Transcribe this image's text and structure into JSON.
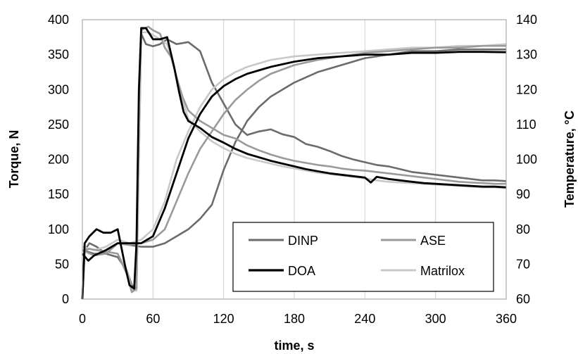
{
  "chart_data": {
    "type": "line",
    "xlabel": "time, s",
    "ylabel_left": "Torque, N",
    "ylabel_right": "Temperature, °C",
    "xlim": [
      0,
      360
    ],
    "ylim_left": [
      0,
      400
    ],
    "ylim_right": [
      60,
      140
    ],
    "x_ticks": [
      "0",
      "60",
      "120",
      "180",
      "240",
      "300",
      "360"
    ],
    "y_left_ticks": [
      "0",
      "50",
      "100",
      "150",
      "200",
      "250",
      "300",
      "350",
      "400"
    ],
    "y_right_ticks": [
      "60",
      "70",
      "80",
      "90",
      "100",
      "110",
      "120",
      "130",
      "140"
    ],
    "grid": true,
    "legend_position": "bottom-right",
    "series": [
      {
        "name": "DINP",
        "color": "#6b6b6b",
        "torque": [
          [
            0,
            0
          ],
          [
            2,
            70
          ],
          [
            6,
            80
          ],
          [
            12,
            75
          ],
          [
            20,
            65
          ],
          [
            30,
            60
          ],
          [
            38,
            40
          ],
          [
            42,
            20
          ],
          [
            46,
            15
          ],
          [
            48,
            200
          ],
          [
            50,
            380
          ],
          [
            54,
            365
          ],
          [
            60,
            362
          ],
          [
            66,
            365
          ],
          [
            72,
            372
          ],
          [
            80,
            365
          ],
          [
            90,
            368
          ],
          [
            100,
            355
          ],
          [
            110,
            310
          ],
          [
            120,
            280
          ],
          [
            130,
            250
          ],
          [
            140,
            235
          ],
          [
            150,
            240
          ],
          [
            160,
            243
          ],
          [
            170,
            236
          ],
          [
            180,
            232
          ],
          [
            190,
            222
          ],
          [
            200,
            218
          ],
          [
            210,
            212
          ],
          [
            220,
            205
          ],
          [
            230,
            200
          ],
          [
            240,
            196
          ],
          [
            250,
            192
          ],
          [
            260,
            190
          ],
          [
            270,
            186
          ],
          [
            280,
            182
          ],
          [
            290,
            180
          ],
          [
            300,
            178
          ],
          [
            310,
            176
          ],
          [
            320,
            174
          ],
          [
            330,
            172
          ],
          [
            340,
            170
          ],
          [
            350,
            170
          ],
          [
            360,
            169
          ]
        ],
        "temperature": [
          [
            0,
            74
          ],
          [
            10,
            73
          ],
          [
            20,
            73
          ],
          [
            30,
            76
          ],
          [
            40,
            75.5
          ],
          [
            50,
            75
          ],
          [
            60,
            75
          ],
          [
            70,
            76
          ],
          [
            80,
            78
          ],
          [
            90,
            80
          ],
          [
            100,
            83
          ],
          [
            110,
            87
          ],
          [
            120,
            97
          ],
          [
            130,
            105
          ],
          [
            140,
            111
          ],
          [
            150,
            115
          ],
          [
            160,
            118
          ],
          [
            170,
            120
          ],
          [
            180,
            122
          ],
          [
            200,
            125
          ],
          [
            220,
            127
          ],
          [
            240,
            129
          ],
          [
            260,
            130
          ],
          [
            280,
            131
          ],
          [
            300,
            131
          ],
          [
            320,
            131.5
          ],
          [
            340,
            131.5
          ],
          [
            360,
            131.5
          ]
        ]
      },
      {
        "name": "ASE",
        "color": "#9a9a9a",
        "torque": [
          [
            0,
            0
          ],
          [
            2,
            70
          ],
          [
            6,
            72
          ],
          [
            12,
            70
          ],
          [
            20,
            68
          ],
          [
            30,
            65
          ],
          [
            38,
            35
          ],
          [
            42,
            10
          ],
          [
            46,
            15
          ],
          [
            48,
            280
          ],
          [
            50,
            385
          ],
          [
            56,
            390
          ],
          [
            60,
            385
          ],
          [
            66,
            380
          ],
          [
            70,
            360
          ],
          [
            76,
            345
          ],
          [
            80,
            318
          ],
          [
            85,
            290
          ],
          [
            90,
            270
          ],
          [
            100,
            255
          ],
          [
            110,
            245
          ],
          [
            120,
            235
          ],
          [
            130,
            230
          ],
          [
            140,
            220
          ],
          [
            150,
            213
          ],
          [
            160,
            207
          ],
          [
            170,
            202
          ],
          [
            180,
            198
          ],
          [
            190,
            195
          ],
          [
            200,
            192
          ],
          [
            210,
            190
          ],
          [
            220,
            187
          ],
          [
            230,
            185
          ],
          [
            240,
            184
          ],
          [
            245,
            183
          ],
          [
            250,
            182
          ],
          [
            260,
            180
          ],
          [
            270,
            178
          ],
          [
            280,
            176
          ],
          [
            290,
            174
          ],
          [
            300,
            172
          ],
          [
            310,
            170
          ],
          [
            320,
            168
          ],
          [
            330,
            167
          ],
          [
            340,
            166
          ],
          [
            350,
            165
          ],
          [
            360,
            165
          ]
        ],
        "temperature": [
          [
            0,
            74
          ],
          [
            10,
            72.5
          ],
          [
            20,
            73
          ],
          [
            30,
            76
          ],
          [
            40,
            75.5
          ],
          [
            50,
            76
          ],
          [
            60,
            77
          ],
          [
            70,
            80
          ],
          [
            80,
            88
          ],
          [
            90,
            96
          ],
          [
            100,
            103
          ],
          [
            110,
            108
          ],
          [
            120,
            113
          ],
          [
            130,
            117
          ],
          [
            140,
            120
          ],
          [
            150,
            122.5
          ],
          [
            160,
            124.5
          ],
          [
            180,
            127
          ],
          [
            200,
            128.5
          ],
          [
            220,
            129.5
          ],
          [
            240,
            130.5
          ],
          [
            260,
            131
          ],
          [
            280,
            131.5
          ],
          [
            300,
            132
          ],
          [
            320,
            132
          ],
          [
            340,
            132.5
          ],
          [
            360,
            132.5
          ]
        ]
      },
      {
        "name": "DOA",
        "color": "#000000",
        "torque": [
          [
            0,
            0
          ],
          [
            2,
            80
          ],
          [
            6,
            90
          ],
          [
            12,
            100
          ],
          [
            18,
            95
          ],
          [
            24,
            95
          ],
          [
            30,
            100
          ],
          [
            36,
            50
          ],
          [
            40,
            20
          ],
          [
            44,
            15
          ],
          [
            46,
            80
          ],
          [
            48,
            300
          ],
          [
            50,
            388
          ],
          [
            54,
            388
          ],
          [
            60,
            372
          ],
          [
            66,
            372
          ],
          [
            72,
            375
          ],
          [
            78,
            332
          ],
          [
            82,
            298
          ],
          [
            86,
            268
          ],
          [
            90,
            255
          ],
          [
            100,
            245
          ],
          [
            110,
            232
          ],
          [
            120,
            224
          ],
          [
            130,
            215
          ],
          [
            140,
            208
          ],
          [
            150,
            203
          ],
          [
            160,
            198
          ],
          [
            170,
            194
          ],
          [
            180,
            190
          ],
          [
            190,
            186
          ],
          [
            200,
            183
          ],
          [
            210,
            180
          ],
          [
            220,
            178
          ],
          [
            230,
            176
          ],
          [
            240,
            174
          ],
          [
            245,
            167
          ],
          [
            250,
            175
          ],
          [
            260,
            172
          ],
          [
            270,
            170
          ],
          [
            280,
            168
          ],
          [
            290,
            166
          ],
          [
            300,
            165
          ],
          [
            310,
            164
          ],
          [
            320,
            163
          ],
          [
            330,
            162
          ],
          [
            340,
            161
          ],
          [
            350,
            161
          ],
          [
            360,
            160
          ]
        ],
        "temperature": [
          [
            0,
            73
          ],
          [
            5,
            71
          ],
          [
            10,
            72.5
          ],
          [
            20,
            74
          ],
          [
            30,
            76
          ],
          [
            40,
            76
          ],
          [
            50,
            76
          ],
          [
            60,
            78
          ],
          [
            70,
            86
          ],
          [
            80,
            96
          ],
          [
            90,
            106
          ],
          [
            100,
            113
          ],
          [
            110,
            118
          ],
          [
            120,
            121
          ],
          [
            130,
            123
          ],
          [
            140,
            124.5
          ],
          [
            160,
            126.5
          ],
          [
            180,
            128
          ],
          [
            200,
            129
          ],
          [
            220,
            129.5
          ],
          [
            240,
            130
          ],
          [
            260,
            130
          ],
          [
            280,
            130.5
          ],
          [
            300,
            130.5
          ],
          [
            320,
            130.8
          ],
          [
            340,
            130.8
          ],
          [
            360,
            130.7
          ]
        ]
      },
      {
        "name": "Matrilox",
        "color": "#c8c8c8",
        "torque": [
          [
            0,
            0
          ],
          [
            2,
            70
          ],
          [
            6,
            72
          ],
          [
            12,
            70
          ],
          [
            20,
            68
          ],
          [
            30,
            65
          ],
          [
            38,
            40
          ],
          [
            42,
            15
          ],
          [
            46,
            12
          ],
          [
            48,
            200
          ],
          [
            50,
            382
          ],
          [
            56,
            382
          ],
          [
            60,
            378
          ],
          [
            66,
            372
          ],
          [
            72,
            365
          ],
          [
            78,
            330
          ],
          [
            84,
            290
          ],
          [
            90,
            258
          ],
          [
            100,
            240
          ],
          [
            110,
            226
          ],
          [
            120,
            216
          ],
          [
            130,
            208
          ],
          [
            140,
            202
          ],
          [
            150,
            198
          ],
          [
            160,
            194
          ],
          [
            170,
            190
          ],
          [
            180,
            187
          ],
          [
            190,
            184
          ],
          [
            200,
            181
          ],
          [
            210,
            179
          ],
          [
            220,
            177
          ],
          [
            230,
            175
          ],
          [
            240,
            173
          ],
          [
            250,
            170
          ],
          [
            260,
            168
          ],
          [
            270,
            167
          ],
          [
            280,
            166
          ],
          [
            290,
            165
          ],
          [
            300,
            164
          ],
          [
            310,
            163
          ],
          [
            320,
            162
          ],
          [
            330,
            161
          ],
          [
            340,
            160
          ],
          [
            350,
            160
          ],
          [
            360,
            159
          ]
        ],
        "temperature": [
          [
            0,
            75
          ],
          [
            10,
            74
          ],
          [
            20,
            75
          ],
          [
            30,
            77
          ],
          [
            40,
            76
          ],
          [
            50,
            77
          ],
          [
            60,
            80
          ],
          [
            70,
            88
          ],
          [
            80,
            100
          ],
          [
            90,
            108
          ],
          [
            100,
            115
          ],
          [
            110,
            120
          ],
          [
            120,
            123
          ],
          [
            130,
            125
          ],
          [
            140,
            126.5
          ],
          [
            160,
            128.5
          ],
          [
            180,
            129.5
          ],
          [
            200,
            130
          ],
          [
            220,
            130.5
          ],
          [
            240,
            131
          ],
          [
            260,
            131.5
          ],
          [
            280,
            132
          ],
          [
            300,
            132
          ],
          [
            320,
            132.5
          ],
          [
            340,
            132.5
          ],
          [
            360,
            133
          ]
        ]
      }
    ]
  }
}
